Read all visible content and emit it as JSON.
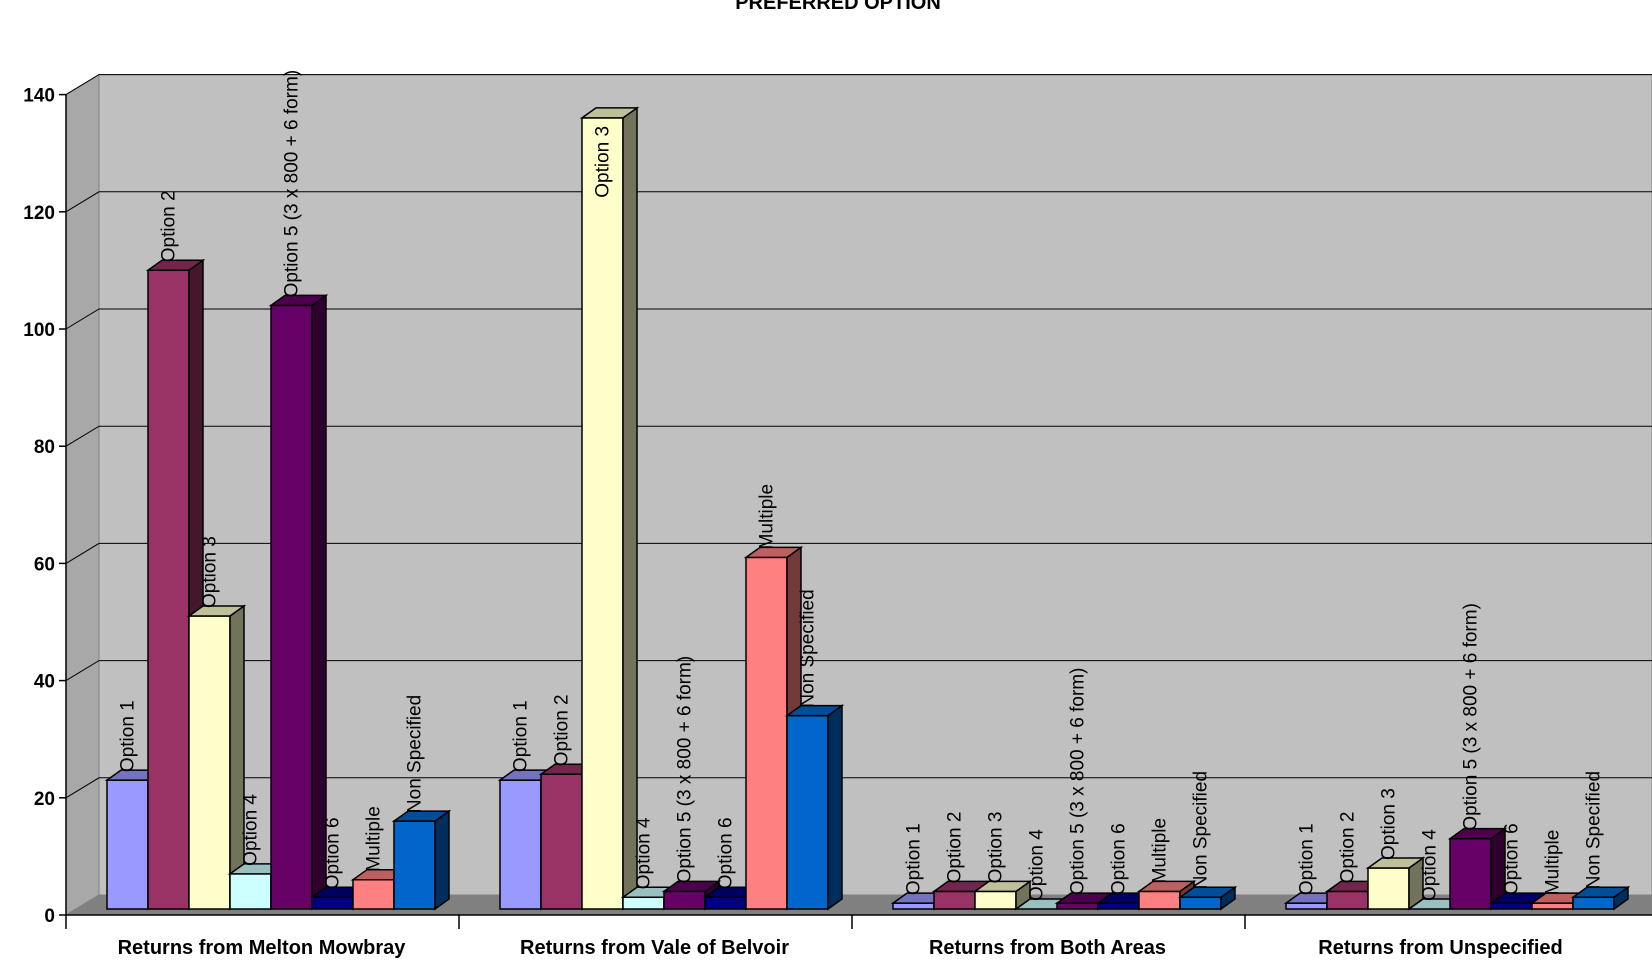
{
  "chart_data": {
    "type": "bar",
    "title": "PREFERRED OPTION",
    "xlabel": "",
    "ylabel": "",
    "ylim": [
      0,
      140
    ],
    "yticks": [
      0,
      20,
      40,
      60,
      80,
      100,
      120,
      140
    ],
    "grid": true,
    "three_d": true,
    "data_labels": "series name",
    "categories": [
      "Returns from Melton Mowbray",
      "Returns from Vale of Belvoir",
      "Returns from Both Areas",
      "Returns from Unspecified"
    ],
    "series": [
      {
        "name": "Option 1",
        "color": "#9999FF",
        "values": [
          22,
          22,
          1,
          1
        ]
      },
      {
        "name": "Option 2",
        "color": "#993366",
        "values": [
          109,
          23,
          3,
          3
        ]
      },
      {
        "name": "Option 3",
        "color": "#FFFFCC",
        "values": [
          50,
          135,
          3,
          7
        ]
      },
      {
        "name": "Option 4",
        "color": "#CCFFFF",
        "values": [
          6,
          2,
          0,
          0
        ]
      },
      {
        "name": "Option 5 (3 x 800 + 6 form)",
        "color": "#660066",
        "values": [
          103,
          3,
          1,
          12
        ]
      },
      {
        "name": "Option 6",
        "color": "#000080",
        "values": [
          2,
          2,
          1,
          1
        ]
      },
      {
        "name": "Multiple",
        "color": "#FF8080",
        "values": [
          5,
          60,
          3,
          1
        ]
      },
      {
        "name": "Non Specified",
        "color": "#0066CC",
        "values": [
          15,
          33,
          2,
          2
        ]
      }
    ]
  }
}
